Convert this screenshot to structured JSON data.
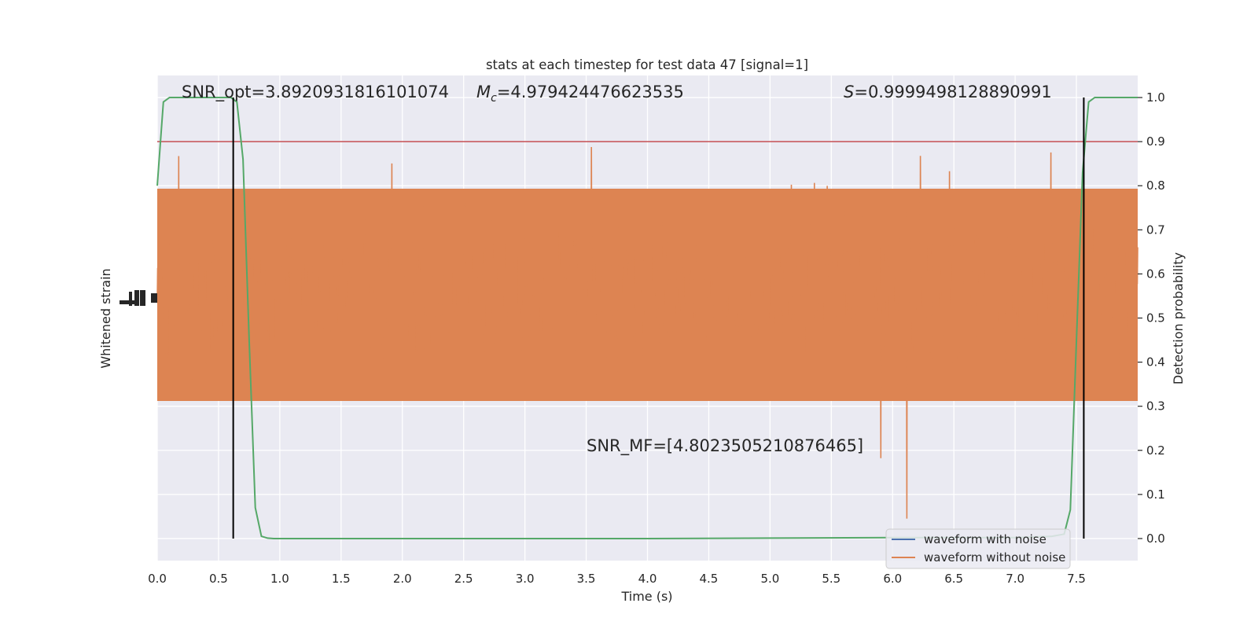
{
  "chart_data": {
    "type": "line",
    "title": "stats at each timestep for test data 47 [signal=1]",
    "xlabel": "Time (s)",
    "ylabel_left": "Whitened strain",
    "ylabel_right": "Detection probability",
    "xlim": [
      0.0,
      8.0
    ],
    "ylim_right": [
      -0.05,
      1.05
    ],
    "x_ticks": [
      "0.0",
      "0.5",
      "1.0",
      "1.5",
      "2.0",
      "2.5",
      "3.0",
      "3.5",
      "4.0",
      "4.5",
      "5.0",
      "5.5",
      "6.0",
      "6.5",
      "7.0",
      "7.5"
    ],
    "y_right_ticks": [
      "0.0",
      "0.1",
      "0.2",
      "0.3",
      "0.4",
      "0.5",
      "0.6",
      "0.7",
      "0.8",
      "0.9",
      "1.0"
    ],
    "grid": true,
    "legend_position": "lower-right",
    "annotations": {
      "snr_opt": "SNR_opt=3.8920931816101074",
      "mc": "=4.979424476623535",
      "mc_symbol": "M",
      "mc_subscript": "c",
      "s": "=0.9999498128890991",
      "s_symbol": "S",
      "snr_mf": "SNR_MF=[4.8023505210876465]"
    },
    "series": [
      {
        "name": "waveform with noise",
        "color": "#4c72b0"
      },
      {
        "name": "waveform without noise",
        "color": "#dd8452"
      }
    ],
    "detection_probability": {
      "color": "#55a868",
      "x": [
        0.0,
        0.05,
        0.1,
        0.2,
        0.3,
        0.4,
        0.5,
        0.6,
        0.65,
        0.7,
        0.75,
        0.8,
        0.85,
        0.9,
        0.95,
        1.0,
        1.5,
        2.0,
        3.0,
        4.0,
        5.0,
        6.0,
        7.0,
        7.3,
        7.4,
        7.45,
        7.5,
        7.55,
        7.6,
        7.65,
        7.7,
        7.8,
        7.9,
        8.0
      ],
      "y": [
        0.8,
        0.99,
        1.0,
        1.0,
        1.0,
        1.0,
        1.0,
        1.0,
        0.99,
        0.86,
        0.45,
        0.07,
        0.005,
        0.001,
        0.0,
        0.0,
        0.0,
        0.0,
        0.0,
        0.0,
        0.001,
        0.002,
        0.002,
        0.005,
        0.01,
        0.065,
        0.45,
        0.83,
        0.99,
        1.0,
        1.0,
        1.0,
        1.0,
        1.0
      ]
    },
    "threshold": {
      "y": 0.9,
      "color": "#c44e52"
    },
    "vertical_markers": {
      "x": [
        0.62,
        7.56
      ],
      "color": "#000000"
    }
  }
}
